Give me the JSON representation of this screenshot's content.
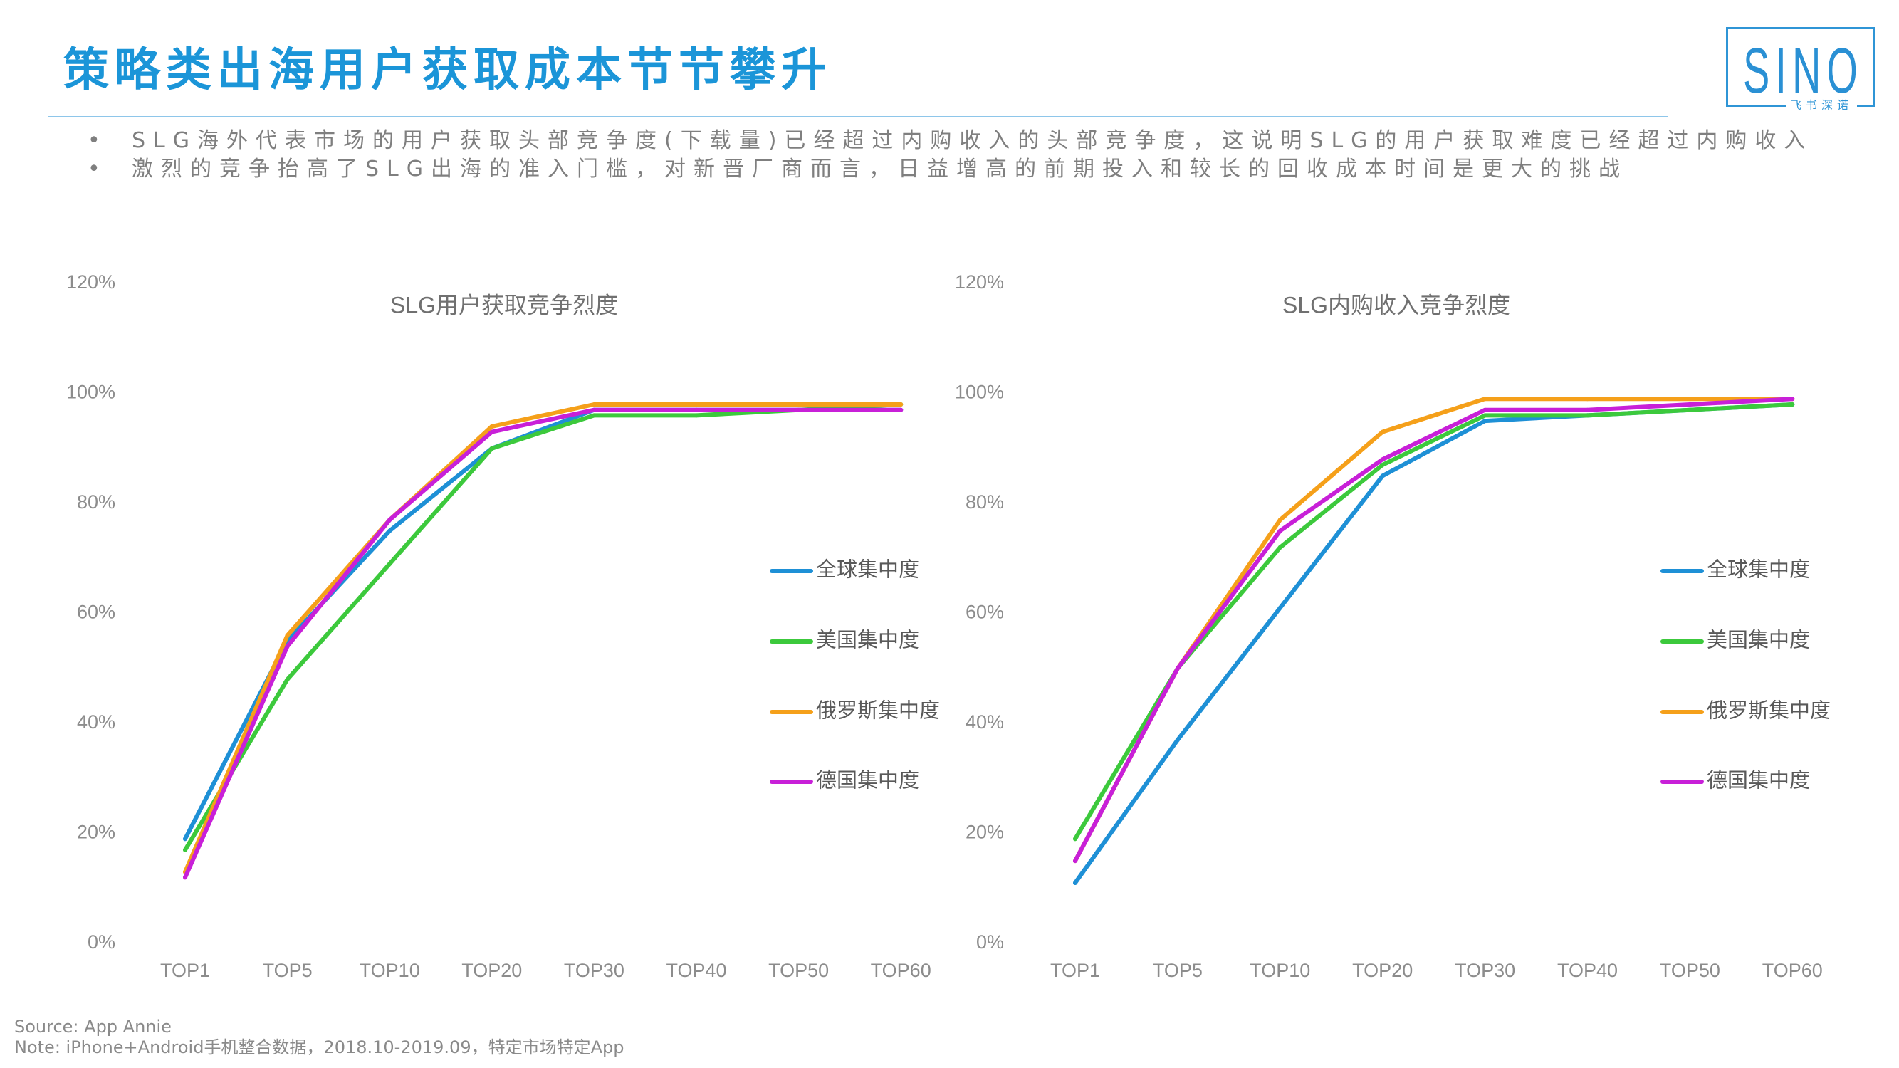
{
  "header": {
    "title": "策略类出海用户获取成本节节攀升"
  },
  "logo": {
    "text": "SINO",
    "subtext": "飞书深诺"
  },
  "bullets": [
    "SLG海外代表市场的用户获取头部竞争度(下载量)已经超过内购收入的头部竞争度，这说明SLG的用户获取难度已经超过内购收入",
    "激烈的竞争抬高了SLG出海的准入门槛，对新晋厂商而言，日益增高的前期投入和较长的回收成本时间是更大的挑战"
  ],
  "colors": {
    "title": "#1b95d8",
    "text_gray": "#7f7f7f",
    "divider": "#8ec6ea"
  },
  "chart_data": [
    {
      "type": "line",
      "title": "SLG用户获取竞争烈度",
      "xlabel": "",
      "ylabel": "",
      "categories": [
        "TOP1",
        "TOP5",
        "TOP10",
        "TOP20",
        "TOP30",
        "TOP40",
        "TOP50",
        "TOP60"
      ],
      "ylim": [
        0,
        120
      ],
      "yticks": [
        0,
        20,
        40,
        60,
        80,
        100,
        120
      ],
      "ytick_labels": [
        "0%",
        "20%",
        "40%",
        "60%",
        "80%",
        "100%",
        "120%"
      ],
      "grid": false,
      "legend": "center-right",
      "series": [
        {
          "name": "全球集中度",
          "color": "#1e90d6",
          "values": [
            19,
            55,
            75,
            90,
            97,
            97,
            97,
            97
          ]
        },
        {
          "name": "美国集中度",
          "color": "#3cc93c",
          "values": [
            17,
            48,
            69,
            90,
            96,
            96,
            97,
            98
          ]
        },
        {
          "name": "俄罗斯集中度",
          "color": "#f5a01a",
          "values": [
            13,
            56,
            77,
            94,
            98,
            98,
            98,
            98
          ]
        },
        {
          "name": "德国集中度",
          "color": "#c820d8",
          "values": [
            12,
            54,
            77,
            93,
            97,
            97,
            97,
            97
          ]
        }
      ]
    },
    {
      "type": "line",
      "title": "SLG内购收入竞争烈度",
      "xlabel": "",
      "ylabel": "",
      "categories": [
        "TOP1",
        "TOP5",
        "TOP10",
        "TOP20",
        "TOP30",
        "TOP40",
        "TOP50",
        "TOP60"
      ],
      "ylim": [
        0,
        120
      ],
      "yticks": [
        0,
        20,
        40,
        60,
        80,
        100,
        120
      ],
      "ytick_labels": [
        "0%",
        "20%",
        "40%",
        "60%",
        "80%",
        "100%",
        "120%"
      ],
      "grid": false,
      "legend": "center-right",
      "series": [
        {
          "name": "全球集中度",
          "color": "#1e90d6",
          "values": [
            11,
            37,
            61,
            85,
            95,
            96,
            97,
            98
          ]
        },
        {
          "name": "美国集中度",
          "color": "#3cc93c",
          "values": [
            19,
            50,
            72,
            87,
            96,
            96,
            97,
            98
          ]
        },
        {
          "name": "俄罗斯集中度",
          "color": "#f5a01a",
          "values": [
            15,
            50,
            77,
            93,
            99,
            99,
            99,
            99
          ]
        },
        {
          "name": "德国集中度",
          "color": "#c820d8",
          "values": [
            15,
            50,
            75,
            88,
            97,
            97,
            98,
            99
          ]
        }
      ]
    }
  ],
  "footer": {
    "source": "Source: App Annie",
    "note": "Note: iPhone+Android手机整合数据，2018.10-2019.09，特定市场特定App"
  }
}
